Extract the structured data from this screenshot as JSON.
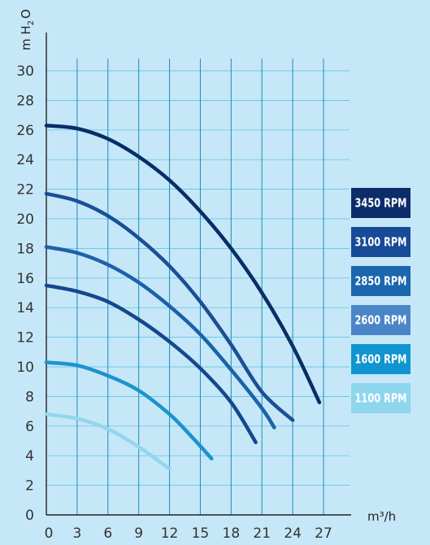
{
  "chart_data": {
    "type": "line",
    "title": "",
    "xlabel": "m³/h",
    "ylabel": "m H₂O",
    "ylabel_parts": {
      "main": "m H",
      "sub": "2",
      "tail": "O"
    },
    "xlim": [
      0,
      27
    ],
    "ylim": [
      0,
      30
    ],
    "xticks": [
      "0",
      "3",
      "6",
      "9",
      "12",
      "15",
      "18",
      "21",
      "24",
      "27"
    ],
    "yticks": [
      "0",
      "2",
      "4",
      "6",
      "8",
      "10",
      "12",
      "14",
      "16",
      "18",
      "20",
      "22",
      "24",
      "26",
      "28",
      "30"
    ],
    "grid": true,
    "legend_position": "right",
    "series": [
      {
        "name": "3450 RPM",
        "color": "#0c2c6a",
        "line_color": "#082e68",
        "x": [
          0,
          3,
          6,
          9,
          12,
          15,
          18,
          21,
          24,
          26.6
        ],
        "y": [
          26.3,
          26.1,
          25.4,
          24.2,
          22.6,
          20.5,
          18.0,
          15.0,
          11.4,
          7.6
        ]
      },
      {
        "name": "3100 RPM",
        "color": "#174a97",
        "line_color": "#1a4f95",
        "x": [
          0,
          3,
          6,
          9,
          12,
          15,
          18,
          21,
          24
        ],
        "y": [
          21.7,
          21.2,
          20.2,
          18.7,
          16.8,
          14.4,
          11.5,
          8.3,
          6.4
        ]
      },
      {
        "name": "2850 RPM",
        "color": "#1b66ad",
        "line_color": "#1c61aa",
        "x": [
          0,
          3,
          6,
          9,
          12,
          15,
          18,
          21,
          22.2
        ],
        "y": [
          18.1,
          17.7,
          16.9,
          15.7,
          14.1,
          12.2,
          9.8,
          7.2,
          5.9
        ]
      },
      {
        "name": "2600 RPM",
        "color": "#4a86c7",
        "line_color": "#15478d",
        "x": [
          0,
          3,
          6,
          9,
          12,
          15,
          18,
          20.4
        ],
        "y": [
          15.5,
          15.1,
          14.4,
          13.2,
          11.7,
          9.9,
          7.6,
          4.9
        ]
      },
      {
        "name": "1600 RPM",
        "color": "#0f95cf",
        "line_color": "#1c93cd",
        "x": [
          0,
          3,
          6,
          9,
          12,
          14,
          16.1
        ],
        "y": [
          10.3,
          10.1,
          9.4,
          8.4,
          6.8,
          5.4,
          3.8
        ]
      },
      {
        "name": "1100 RPM",
        "color": "#8dd6ee",
        "line_color": "#93d6ee",
        "x": [
          0,
          3,
          6,
          9,
          12
        ],
        "y": [
          6.8,
          6.5,
          5.8,
          4.6,
          3.1
        ]
      }
    ]
  }
}
